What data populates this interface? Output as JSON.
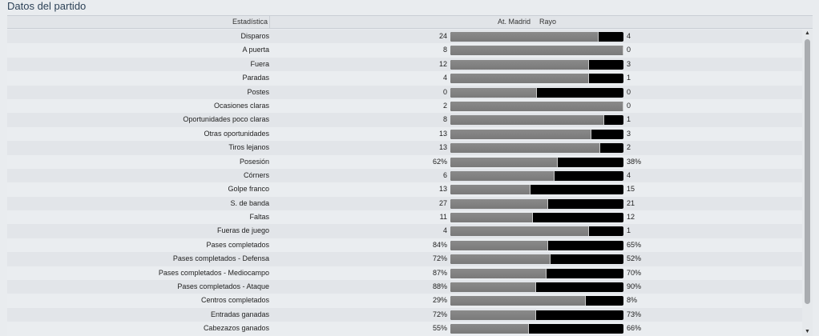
{
  "title": "Datos del partido",
  "header": {
    "stat_col": "Estadística",
    "home_team": "At. Madrid",
    "away_team": "Rayo"
  },
  "colors": {
    "home_bar": "#808080",
    "away_bar": "#000000"
  },
  "stats": [
    {
      "label": "Disparos",
      "home": "24",
      "away": "4",
      "home_share": 0.857
    },
    {
      "label": "A puerta",
      "home": "8",
      "away": "0",
      "home_share": 1.0
    },
    {
      "label": "Fuera",
      "home": "12",
      "away": "3",
      "home_share": 0.8
    },
    {
      "label": "Paradas",
      "home": "4",
      "away": "1",
      "home_share": 0.8
    },
    {
      "label": "Postes",
      "home": "0",
      "away": "0",
      "home_share": 0.5
    },
    {
      "label": "Ocasiones claras",
      "home": "2",
      "away": "0",
      "home_share": 1.0
    },
    {
      "label": "Oportunidades poco claras",
      "home": "8",
      "away": "1",
      "home_share": 0.889
    },
    {
      "label": "Otras oportunidades",
      "home": "13",
      "away": "3",
      "home_share": 0.8125
    },
    {
      "label": "Tiros lejanos",
      "home": "13",
      "away": "2",
      "home_share": 0.867
    },
    {
      "label": "Posesión",
      "home": "62%",
      "away": "38%",
      "home_share": 0.62
    },
    {
      "label": "Córners",
      "home": "6",
      "away": "4",
      "home_share": 0.6
    },
    {
      "label": "Golpe franco",
      "home": "13",
      "away": "15",
      "home_share": 0.464
    },
    {
      "label": "S. de banda",
      "home": "27",
      "away": "21",
      "home_share": 0.5625
    },
    {
      "label": "Faltas",
      "home": "11",
      "away": "12",
      "home_share": 0.478
    },
    {
      "label": "Fueras de juego",
      "home": "4",
      "away": "1",
      "home_share": 0.8
    },
    {
      "label": "Pases completados",
      "home": "84%",
      "away": "65%",
      "home_share": 0.564
    },
    {
      "label": "Pases completados - Defensa",
      "home": "72%",
      "away": "52%",
      "home_share": 0.581
    },
    {
      "label": "Pases completados - Mediocampo",
      "home": "87%",
      "away": "70%",
      "home_share": 0.554
    },
    {
      "label": "Pases completados - Ataque",
      "home": "88%",
      "away": "90%",
      "home_share": 0.494
    },
    {
      "label": "Centros completados",
      "home": "29%",
      "away": "8%",
      "home_share": 0.784
    },
    {
      "label": "Entradas ganadas",
      "home": "72%",
      "away": "73%",
      "home_share": 0.497
    },
    {
      "label": "Cabezazos ganados",
      "home": "55%",
      "away": "66%",
      "home_share": 0.455
    }
  ]
}
